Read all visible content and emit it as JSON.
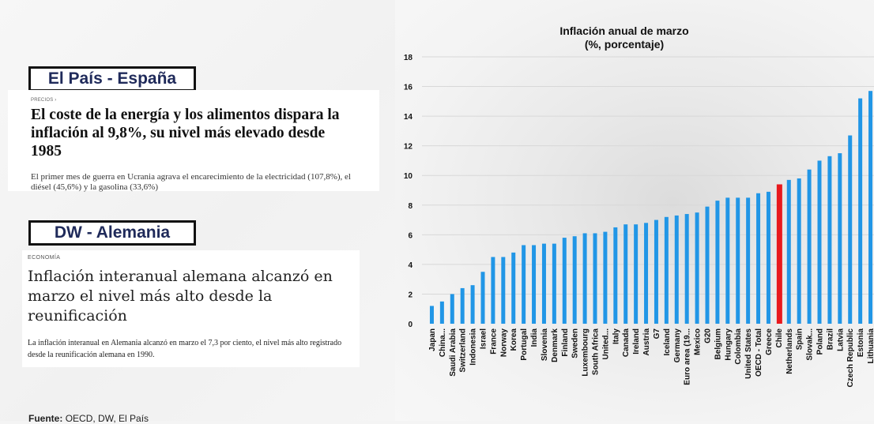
{
  "left": {
    "elpais_label": "El País - España",
    "elpais_kicker": "PRECIOS ›",
    "elpais_title": "El coste de la energía y los alimentos dispara la inflación al 9,8%, su nivel más elevado desde 1985",
    "elpais_sub": "El primer mes de guerra en Ucrania agrava el encarecimiento de la electricidad (107,8%), el diésel (45,6%) y la gasolina (33,6%)",
    "dw_label": "DW - Alemania",
    "dw_kicker": "ECONOMÍA",
    "dw_title": "Inflación interanual alemana alcanzó en marzo el nivel más alto desde la reunificación",
    "dw_sub": "La inflación interanual en Alemania alcanzó en marzo el 7,3 por ciento, el nivel más alto registrado desde la reunificación alemana en 1990.",
    "source_label": "Fuente:",
    "source_text": "OECD, DW, El País"
  },
  "chart_data": {
    "type": "bar",
    "title": "Inflación anual de marzo",
    "subtitle": "(%, porcentaje)",
    "ylim": [
      0,
      18
    ],
    "yticks": [
      0,
      2,
      4,
      6,
      8,
      10,
      12,
      14,
      16,
      18
    ],
    "grid": true,
    "bar_color": "#2196e6",
    "highlight_color": "#e8191d",
    "highlight_category": "Chile",
    "categories": [
      "Japan",
      "China...",
      "Saudi Arabia",
      "Switzerland",
      "Indonesia",
      "Israel",
      "France",
      "Norway",
      "Korea",
      "Portugal",
      "India",
      "Slovenia",
      "Denmark",
      "Finland",
      "Sweden",
      "Luxembourg",
      "South Africa",
      "United...",
      "Italy",
      "Canada",
      "Ireland",
      "Austria",
      "G7",
      "Iceland",
      "Germany",
      "Euro area (19...",
      "Mexico",
      "G20",
      "Belgium",
      "Hungary",
      "Colombia",
      "United States",
      "OECD - Total",
      "Greece",
      "Chile",
      "Netherlands",
      "Spain",
      "Slovak...",
      "Poland",
      "Brazil",
      "Latvia",
      "Czech Republic",
      "Estonia",
      "Lithuania"
    ],
    "values": [
      1.2,
      1.5,
      2.0,
      2.4,
      2.6,
      3.5,
      4.5,
      4.5,
      4.8,
      5.3,
      5.3,
      5.4,
      5.4,
      5.8,
      5.9,
      6.1,
      6.1,
      6.2,
      6.5,
      6.7,
      6.7,
      6.8,
      7.0,
      7.2,
      7.3,
      7.4,
      7.5,
      7.9,
      8.3,
      8.5,
      8.5,
      8.5,
      8.8,
      8.9,
      9.4,
      9.7,
      9.8,
      10.4,
      11.0,
      11.3,
      11.5,
      12.7,
      15.2,
      15.7
    ]
  }
}
